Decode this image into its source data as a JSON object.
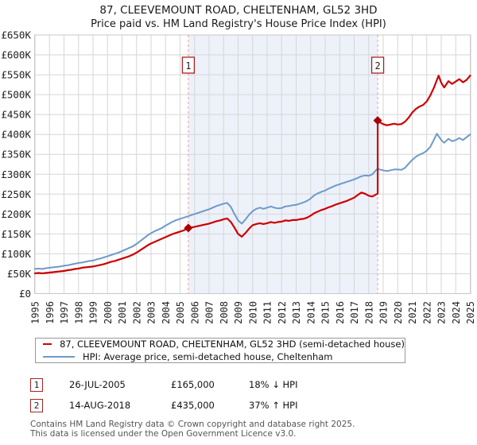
{
  "chart_data": {
    "type": "line",
    "title": "87, CLEEVEMOUNT ROAD, CHELTENHAM, GL52 3HD",
    "subtitle": "Price paid vs. HM Land Registry's House Price Index (HPI)",
    "grid": true,
    "ylim": [
      0,
      650
    ],
    "ytick_step": 50,
    "ytick_prefix": "£",
    "ytick_suffix": "K",
    "xticks": [
      1995,
      1996,
      1997,
      1998,
      1999,
      2000,
      2001,
      2002,
      2003,
      2004,
      2005,
      2006,
      2007,
      2008,
      2009,
      2010,
      2011,
      2012,
      2013,
      2014,
      2015,
      2016,
      2017,
      2018,
      2019,
      2020,
      2021,
      2022,
      2023,
      2024,
      2025
    ],
    "xlim": [
      1995,
      2025
    ],
    "legend_position": "bottom",
    "colors": {
      "grid": "#d6d6d6",
      "plot_border": "#c8c8c8",
      "band": "#edf1fa",
      "dash": "#ee9999",
      "marker": "#aa0000",
      "marker_box_border": "#aa2222",
      "tick_text": "#222222"
    },
    "shaded_region": {
      "x_start": 2005.57,
      "x_end": 2018.62
    },
    "series": [
      {
        "name": "87, CLEEVEMOUNT ROAD, CHELTENHAM, GL52 3HD (semi-detached house)",
        "color": "#cc0000",
        "points": [
          [
            1995,
            51
          ],
          [
            1995.25,
            52
          ],
          [
            1995.5,
            51
          ],
          [
            1995.75,
            52
          ],
          [
            1996,
            53
          ],
          [
            1996.25,
            54
          ],
          [
            1996.5,
            55
          ],
          [
            1996.75,
            56
          ],
          [
            1997,
            57
          ],
          [
            1997.25,
            59
          ],
          [
            1997.5,
            60
          ],
          [
            1997.75,
            62
          ],
          [
            1998,
            63
          ],
          [
            1998.25,
            65
          ],
          [
            1998.5,
            66
          ],
          [
            1998.75,
            67
          ],
          [
            1999,
            68
          ],
          [
            1999.25,
            70
          ],
          [
            1999.5,
            72
          ],
          [
            1999.75,
            74
          ],
          [
            2000,
            77
          ],
          [
            2000.25,
            80
          ],
          [
            2000.5,
            82
          ],
          [
            2000.75,
            85
          ],
          [
            2001,
            88
          ],
          [
            2001.25,
            91
          ],
          [
            2001.5,
            94
          ],
          [
            2001.75,
            98
          ],
          [
            2002,
            103
          ],
          [
            2002.25,
            109
          ],
          [
            2002.5,
            115
          ],
          [
            2002.75,
            121
          ],
          [
            2003,
            126
          ],
          [
            2003.25,
            130
          ],
          [
            2003.5,
            134
          ],
          [
            2003.75,
            138
          ],
          [
            2004,
            142
          ],
          [
            2004.25,
            146
          ],
          [
            2004.5,
            150
          ],
          [
            2004.75,
            153
          ],
          [
            2005,
            156
          ],
          [
            2005.25,
            159
          ],
          [
            2005.57,
            165
          ],
          [
            2005.75,
            166
          ],
          [
            2006,
            168
          ],
          [
            2006.25,
            170
          ],
          [
            2006.5,
            172
          ],
          [
            2006.75,
            174
          ],
          [
            2007,
            176
          ],
          [
            2007.25,
            179
          ],
          [
            2007.5,
            182
          ],
          [
            2007.75,
            184
          ],
          [
            2008,
            187
          ],
          [
            2008.25,
            189
          ],
          [
            2008.5,
            180
          ],
          [
            2008.75,
            166
          ],
          [
            2009,
            150
          ],
          [
            2009.25,
            143
          ],
          [
            2009.5,
            152
          ],
          [
            2009.75,
            163
          ],
          [
            2010,
            172
          ],
          [
            2010.25,
            175
          ],
          [
            2010.5,
            177
          ],
          [
            2010.75,
            175
          ],
          [
            2011,
            177
          ],
          [
            2011.25,
            180
          ],
          [
            2011.5,
            178
          ],
          [
            2011.75,
            180
          ],
          [
            2012,
            181
          ],
          [
            2012.25,
            184
          ],
          [
            2012.5,
            183
          ],
          [
            2012.75,
            185
          ],
          [
            2013,
            185
          ],
          [
            2013.25,
            187
          ],
          [
            2013.5,
            188
          ],
          [
            2013.75,
            191
          ],
          [
            2014,
            196
          ],
          [
            2014.25,
            202
          ],
          [
            2014.5,
            206
          ],
          [
            2014.75,
            210
          ],
          [
            2015,
            213
          ],
          [
            2015.25,
            217
          ],
          [
            2015.5,
            220
          ],
          [
            2015.75,
            224
          ],
          [
            2016,
            227
          ],
          [
            2016.25,
            230
          ],
          [
            2016.5,
            233
          ],
          [
            2016.75,
            237
          ],
          [
            2017,
            241
          ],
          [
            2017.25,
            248
          ],
          [
            2017.5,
            254
          ],
          [
            2017.75,
            251
          ],
          [
            2018,
            246
          ],
          [
            2018.25,
            244
          ],
          [
            2018.5,
            249
          ],
          [
            2018.62,
            251
          ],
          [
            2018.62,
            435
          ],
          [
            2018.75,
            431
          ],
          [
            2019,
            426
          ],
          [
            2019.25,
            423
          ],
          [
            2019.5,
            425
          ],
          [
            2019.75,
            427
          ],
          [
            2020,
            425
          ],
          [
            2020.25,
            426
          ],
          [
            2020.5,
            432
          ],
          [
            2020.75,
            442
          ],
          [
            2021,
            455
          ],
          [
            2021.25,
            464
          ],
          [
            2021.5,
            470
          ],
          [
            2021.75,
            474
          ],
          [
            2022,
            483
          ],
          [
            2022.25,
            498
          ],
          [
            2022.5,
            518
          ],
          [
            2022.82,
            548
          ],
          [
            2023,
            530
          ],
          [
            2023.2,
            518
          ],
          [
            2023.5,
            534
          ],
          [
            2023.75,
            527
          ],
          [
            2024,
            533
          ],
          [
            2024.25,
            539
          ],
          [
            2024.5,
            531
          ],
          [
            2024.75,
            537
          ],
          [
            2025,
            548
          ]
        ]
      },
      {
        "name": "HPI: Average price, semi-detached house, Cheltenham",
        "color": "#6d9ac8",
        "points": [
          [
            1995,
            62
          ],
          [
            1995.25,
            63
          ],
          [
            1995.5,
            62
          ],
          [
            1995.75,
            64
          ],
          [
            1996,
            65
          ],
          [
            1996.25,
            66
          ],
          [
            1996.5,
            67
          ],
          [
            1996.75,
            68
          ],
          [
            1997,
            70
          ],
          [
            1997.25,
            71
          ],
          [
            1997.5,
            73
          ],
          [
            1997.75,
            75
          ],
          [
            1998,
            77
          ],
          [
            1998.25,
            78
          ],
          [
            1998.5,
            80
          ],
          [
            1998.75,
            82
          ],
          [
            1999,
            83
          ],
          [
            1999.25,
            86
          ],
          [
            1999.5,
            88
          ],
          [
            1999.75,
            91
          ],
          [
            2000,
            94
          ],
          [
            2000.25,
            97
          ],
          [
            2000.5,
            100
          ],
          [
            2000.75,
            103
          ],
          [
            2001,
            107
          ],
          [
            2001.25,
            111
          ],
          [
            2001.5,
            115
          ],
          [
            2001.75,
            119
          ],
          [
            2002,
            125
          ],
          [
            2002.25,
            132
          ],
          [
            2002.5,
            139
          ],
          [
            2002.75,
            146
          ],
          [
            2003,
            152
          ],
          [
            2003.25,
            157
          ],
          [
            2003.5,
            161
          ],
          [
            2003.75,
            165
          ],
          [
            2004,
            171
          ],
          [
            2004.25,
            176
          ],
          [
            2004.5,
            181
          ],
          [
            2004.75,
            185
          ],
          [
            2005,
            188
          ],
          [
            2005.25,
            191
          ],
          [
            2005.5,
            194
          ],
          [
            2005.75,
            197
          ],
          [
            2006,
            200
          ],
          [
            2006.25,
            203
          ],
          [
            2006.5,
            206
          ],
          [
            2006.75,
            209
          ],
          [
            2007,
            212
          ],
          [
            2007.25,
            216
          ],
          [
            2007.5,
            220
          ],
          [
            2007.75,
            223
          ],
          [
            2008,
            226
          ],
          [
            2008.25,
            228
          ],
          [
            2008.5,
            218
          ],
          [
            2008.75,
            200
          ],
          [
            2009,
            184
          ],
          [
            2009.25,
            176
          ],
          [
            2009.5,
            186
          ],
          [
            2009.75,
            198
          ],
          [
            2010,
            207
          ],
          [
            2010.25,
            213
          ],
          [
            2010.5,
            216
          ],
          [
            2010.75,
            213
          ],
          [
            2011,
            216
          ],
          [
            2011.25,
            219
          ],
          [
            2011.5,
            216
          ],
          [
            2011.75,
            214
          ],
          [
            2012,
            215
          ],
          [
            2012.25,
            219
          ],
          [
            2012.5,
            220
          ],
          [
            2012.75,
            222
          ],
          [
            2013,
            223
          ],
          [
            2013.25,
            226
          ],
          [
            2013.5,
            229
          ],
          [
            2013.75,
            233
          ],
          [
            2014,
            239
          ],
          [
            2014.25,
            247
          ],
          [
            2014.5,
            252
          ],
          [
            2014.75,
            256
          ],
          [
            2015,
            259
          ],
          [
            2015.25,
            264
          ],
          [
            2015.5,
            268
          ],
          [
            2015.75,
            272
          ],
          [
            2016,
            275
          ],
          [
            2016.25,
            278
          ],
          [
            2016.5,
            281
          ],
          [
            2016.75,
            284
          ],
          [
            2017,
            287
          ],
          [
            2017.25,
            291
          ],
          [
            2017.5,
            295
          ],
          [
            2017.75,
            297
          ],
          [
            2018,
            296
          ],
          [
            2018.25,
            300
          ],
          [
            2018.5,
            310
          ],
          [
            2018.62,
            315
          ],
          [
            2018.75,
            312
          ],
          [
            2019,
            310
          ],
          [
            2019.25,
            308
          ],
          [
            2019.5,
            310
          ],
          [
            2019.75,
            312
          ],
          [
            2020,
            312
          ],
          [
            2020.25,
            311
          ],
          [
            2020.5,
            316
          ],
          [
            2020.75,
            326
          ],
          [
            2021,
            336
          ],
          [
            2021.25,
            344
          ],
          [
            2021.5,
            349
          ],
          [
            2021.75,
            353
          ],
          [
            2022,
            359
          ],
          [
            2022.25,
            369
          ],
          [
            2022.5,
            387
          ],
          [
            2022.7,
            402
          ],
          [
            2023,
            386
          ],
          [
            2023.2,
            379
          ],
          [
            2023.5,
            389
          ],
          [
            2023.75,
            383
          ],
          [
            2024,
            386
          ],
          [
            2024.25,
            391
          ],
          [
            2024.5,
            386
          ],
          [
            2024.75,
            393
          ],
          [
            2025,
            400
          ]
        ]
      }
    ],
    "sale_markers": [
      {
        "n": "1",
        "x": 2005.57,
        "value": 165,
        "date": "26-JUL-2005",
        "price": "£165,000",
        "hpi_relation": "18% ↓ HPI"
      },
      {
        "n": "2",
        "x": 2018.62,
        "value": 435,
        "date": "14-AUG-2018",
        "price": "£435,000",
        "hpi_relation": "37% ↑ HPI"
      }
    ]
  },
  "footer": {
    "line1": "Contains HM Land Registry data © Crown copyright and database right 2025.",
    "line2": "This data is licensed under the Open Government Licence v3.0."
  }
}
